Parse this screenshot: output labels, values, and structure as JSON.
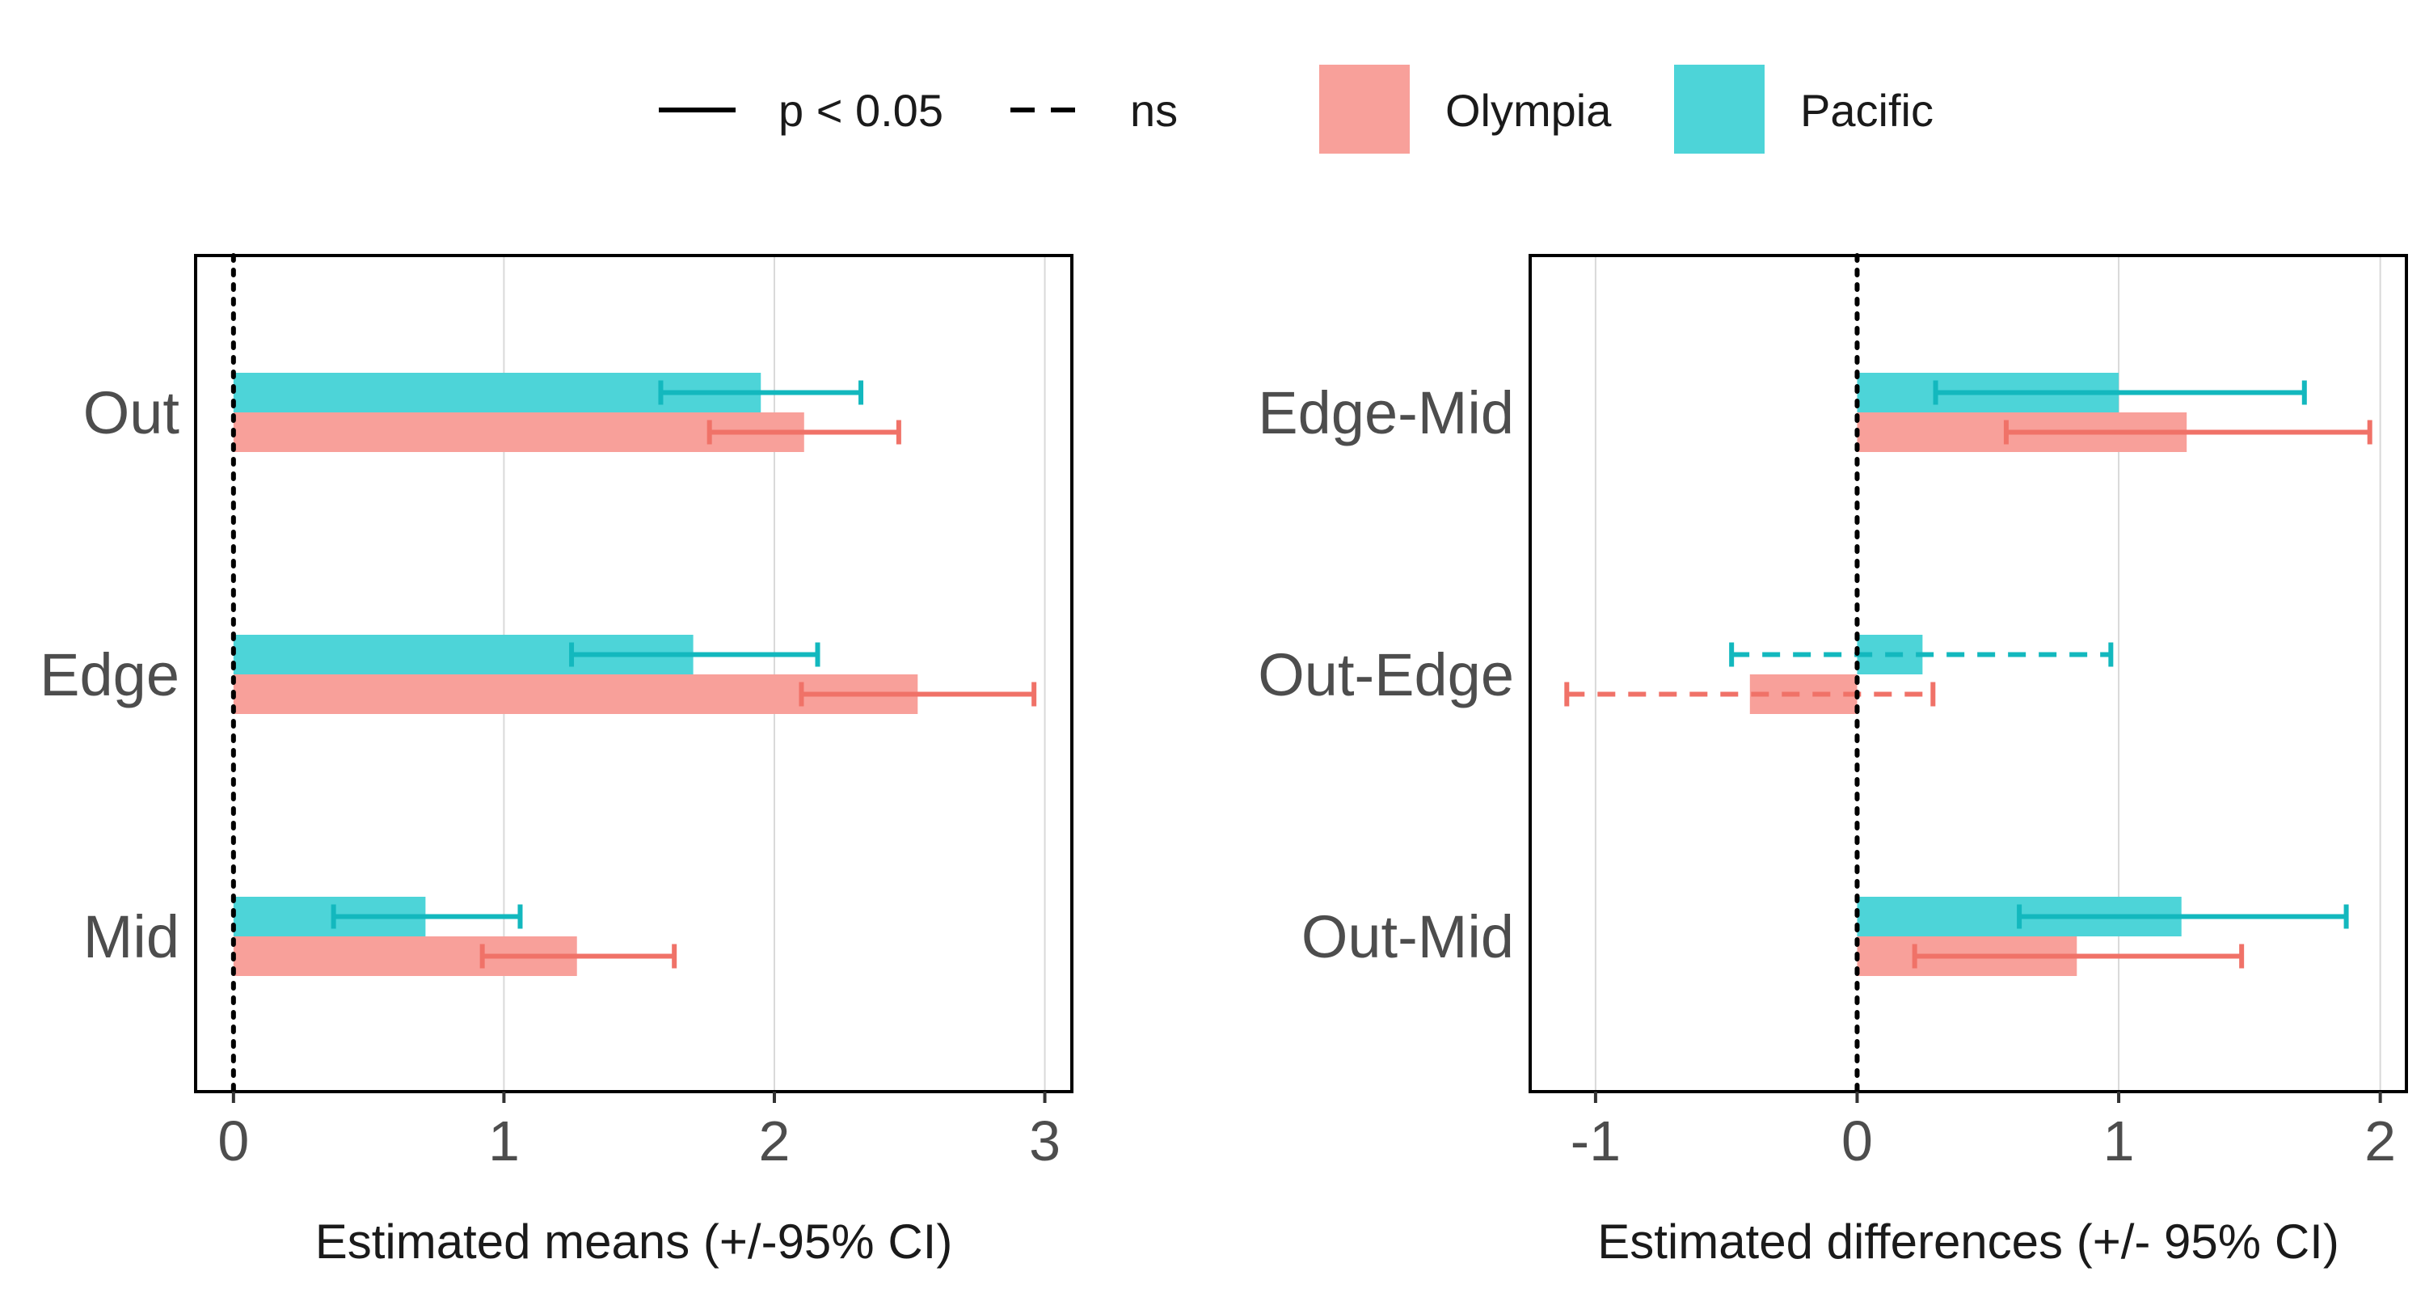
{
  "legend": {
    "line_items": [
      {
        "label": "p < 0.05",
        "style": "solid"
      },
      {
        "label": "ns",
        "style": "dashed"
      }
    ],
    "fill_items": [
      {
        "label": "Olympia",
        "color": "#F8A09A"
      },
      {
        "label": "Pacific",
        "color": "#4DD4D8"
      }
    ]
  },
  "colors": {
    "olympia_fill": "#F8A09A",
    "olympia_line": "#F07268",
    "pacific_fill": "#4DD4D8",
    "pacific_line": "#13B8BE",
    "zero_line": "#000000",
    "grid": "#d9d9d9"
  },
  "chart_data": [
    {
      "type": "bar",
      "orientation": "horizontal",
      "title": "",
      "xlabel": "Estimated means (+/-95% CI)",
      "ylabel": "",
      "xlim": [
        -0.14,
        3.1
      ],
      "xticks": [
        0,
        1,
        2,
        3
      ],
      "grid": "vertical",
      "zero_line": "dotted",
      "categories": [
        "Out",
        "Edge",
        "Mid"
      ],
      "series": [
        {
          "name": "Pacific",
          "values": [
            1.95,
            1.7,
            0.71
          ],
          "ci_low": [
            1.58,
            1.25,
            0.37
          ],
          "ci_high": [
            2.32,
            2.16,
            1.06
          ],
          "significant": [
            true,
            true,
            true
          ]
        },
        {
          "name": "Olympia",
          "values": [
            2.11,
            2.53,
            1.27
          ],
          "ci_low": [
            1.76,
            2.1,
            0.92
          ],
          "ci_high": [
            2.46,
            2.96,
            1.63
          ],
          "significant": [
            true,
            true,
            true
          ]
        }
      ]
    },
    {
      "type": "bar",
      "orientation": "horizontal",
      "title": "",
      "xlabel": "Estimated differences (+/- 95% CI)",
      "ylabel": "",
      "xlim": [
        -1.25,
        2.1
      ],
      "xticks": [
        -1,
        0,
        1,
        2
      ],
      "grid": "vertical",
      "zero_line": "dotted",
      "categories": [
        "Edge-Mid",
        "Out-Edge",
        "Out-Mid"
      ],
      "series": [
        {
          "name": "Pacific",
          "values": [
            1.0,
            0.25,
            1.24
          ],
          "ci_low": [
            0.3,
            -0.48,
            0.62
          ],
          "ci_high": [
            1.71,
            0.97,
            1.87
          ],
          "significant": [
            true,
            false,
            true
          ]
        },
        {
          "name": "Olympia",
          "values": [
            1.26,
            -0.41,
            0.84
          ],
          "ci_low": [
            0.57,
            -1.11,
            0.22
          ],
          "ci_high": [
            1.96,
            0.29,
            1.47
          ],
          "significant": [
            true,
            false,
            true
          ]
        }
      ]
    }
  ]
}
